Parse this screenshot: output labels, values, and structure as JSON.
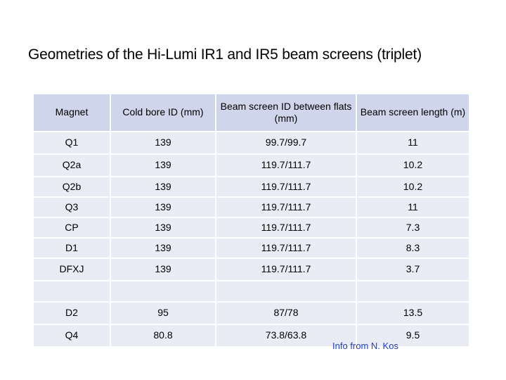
{
  "slide": {
    "title": "Geometries of the Hi-Lumi IR1 and IR5 beam screens (triplet)",
    "note": "Info from N. Kos"
  },
  "table": {
    "headers": [
      "Magnet",
      "Cold bore ID (mm)",
      "Beam screen ID between flats (mm)",
      "Beam screen length (m)"
    ],
    "rows": [
      [
        "Q1",
        "139",
        "99.7/99.7",
        "11"
      ],
      [
        "Q2a",
        "139",
        "119.7/111.7",
        "10.2"
      ],
      [
        "Q2b",
        "139",
        "119.7/111.7",
        "10.2"
      ],
      [
        "Q3",
        "139",
        "119.7/111.7",
        "11"
      ],
      [
        "CP",
        "139",
        "119.7/111.7",
        "7.3"
      ],
      [
        "D1",
        "139",
        "119.7/111.7",
        "8.3"
      ],
      [
        "DFXJ",
        "139",
        "119.7/111.7",
        "3.7"
      ],
      [
        "",
        "",
        "",
        ""
      ],
      [
        "D2",
        "95",
        "87/78",
        "13.5"
      ],
      [
        "Q4",
        "80.8",
        "73.8/63.8",
        "9.5"
      ]
    ]
  },
  "colors": {
    "header_bg": "#cfd5ea",
    "row_bg": "#e9ebf5",
    "note_text": "#1f3fbf"
  }
}
